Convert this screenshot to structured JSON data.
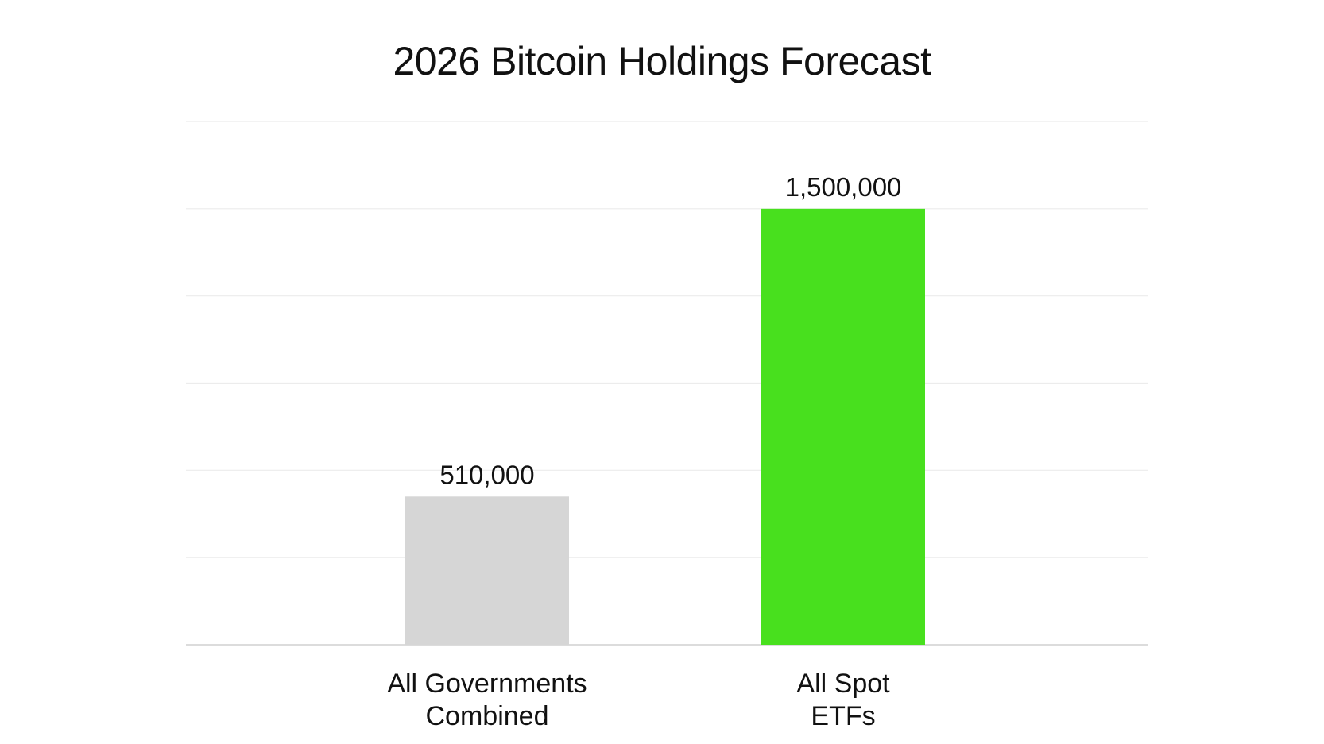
{
  "chart_data": {
    "type": "bar",
    "title": "2026 Bitcoin Holdings Forecast",
    "categories": [
      [
        "All Governments",
        "Combined"
      ],
      [
        "All Spot",
        "ETFs"
      ]
    ],
    "values": [
      510000,
      1500000
    ],
    "value_labels": [
      "510,000",
      "1,500,000"
    ],
    "colors": [
      "#d6d6d6",
      "#48e01e"
    ],
    "ylim": [
      0,
      1800000
    ],
    "gridlines": [
      0,
      300000,
      600000,
      900000,
      1200000,
      1500000,
      1800000
    ],
    "grid": true,
    "legend": "none",
    "xlabel": "",
    "ylabel": ""
  }
}
